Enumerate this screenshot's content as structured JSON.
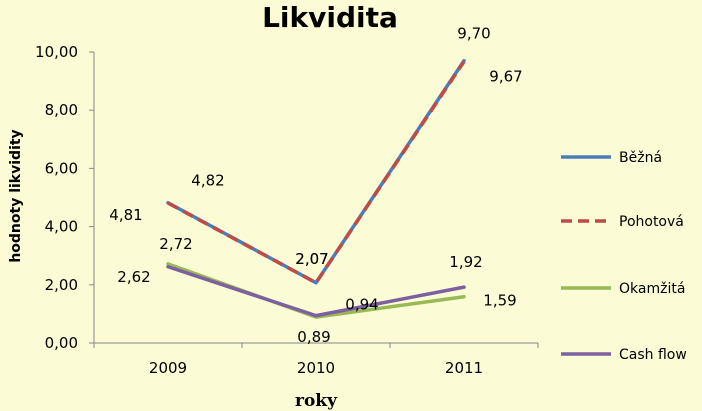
{
  "chart_data": {
    "type": "line",
    "title": "Likvidita",
    "xlabel": "roky",
    "ylabel": "hodnoty likvidity",
    "categories": [
      "2009",
      "2010",
      "2011"
    ],
    "ylim": [
      0,
      10
    ],
    "y_ticks": [
      "0,00",
      "2,00",
      "4,00",
      "6,00",
      "8,00",
      "10,00"
    ],
    "grid": false,
    "legend_position": "right",
    "series": [
      {
        "name": "Běžná",
        "values": [
          4.82,
          2.07,
          9.7
        ],
        "labels": [
          "4,82",
          "2,07",
          "9,70"
        ],
        "color": "#4a7ebb",
        "dash": "solid"
      },
      {
        "name": "Pohotová",
        "values": [
          4.81,
          2.07,
          9.67
        ],
        "labels": [
          "4,81",
          "2,07",
          "9,67"
        ],
        "color": "#be4b48",
        "dash": "dashed"
      },
      {
        "name": "Okamžitá",
        "values": [
          2.72,
          0.89,
          1.59
        ],
        "labels": [
          "2,72",
          "0,89",
          "1,59"
        ],
        "color": "#98b954",
        "dash": "solid"
      },
      {
        "name": "Cash flow",
        "values": [
          2.62,
          0.94,
          1.92
        ],
        "labels": [
          "2,62",
          "0,94",
          "1,92"
        ],
        "color": "#7d60a0",
        "dash": "solid"
      }
    ]
  }
}
